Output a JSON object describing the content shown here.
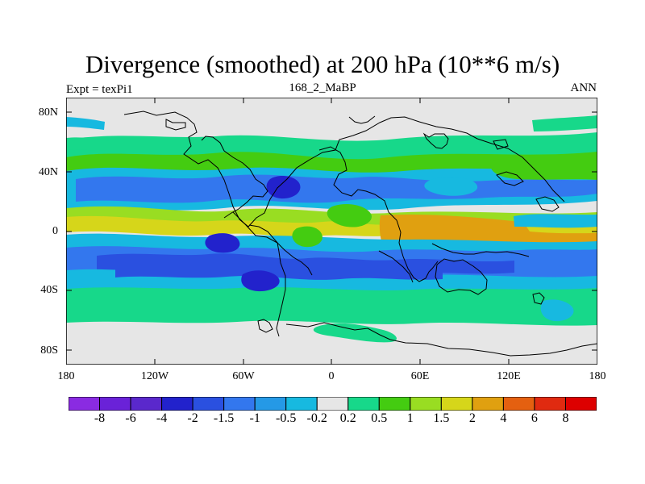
{
  "header": {
    "title": "Divergence (smoothed) at 200 hPa (10**6 m/s)",
    "left_label": "Expt = texPi1",
    "center_label": "168_2_MaBP",
    "right_label": "ANN"
  },
  "axes": {
    "lat_labels": [
      "80N",
      "40N",
      "0",
      "40S",
      "80S"
    ],
    "lon_labels": [
      "180",
      "120W",
      "60W",
      "0",
      "60E",
      "120E",
      "180"
    ]
  },
  "colorbar": {
    "labels": [
      "-8",
      "-6",
      "-4",
      "-2",
      "-1.5",
      "-1",
      "-0.5",
      "-0.2",
      "0.2",
      "0.5",
      "1",
      "1.5",
      "2",
      "4",
      "6",
      "8"
    ],
    "colors": [
      "#8a2be2",
      "#6a22d8",
      "#5a28cc",
      "#2222cc",
      "#2a50e0",
      "#3377ee",
      "#2599e6",
      "#17b9e0",
      "#e6e6e6",
      "#17d88a",
      "#44cc11",
      "#99dd22",
      "#d6d61a",
      "#e0a010",
      "#e46010",
      "#e02a10",
      "#dd0000"
    ]
  },
  "map": {
    "projection": "cylindrical equidistant",
    "lon_range": [
      -180,
      180
    ],
    "lat_range": [
      -90,
      90
    ],
    "land_field_color": "#e6e6e6"
  }
}
